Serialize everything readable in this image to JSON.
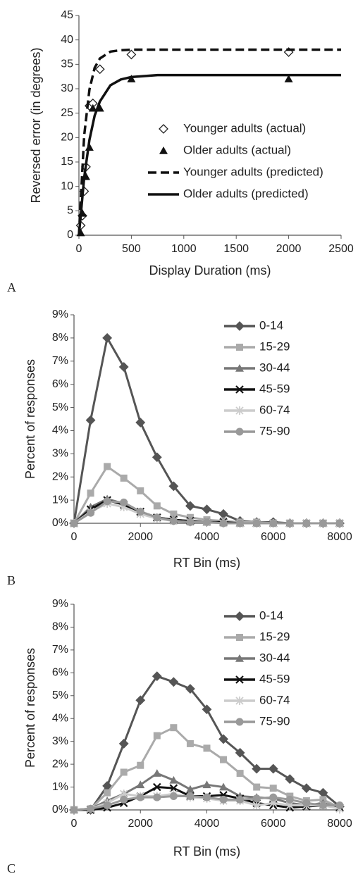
{
  "chart_data": [
    {
      "type": "scatter",
      "panel_label": "A",
      "x_label": "Display Duration (ms)",
      "y_label": "Reversed error (in degrees)",
      "xlim": [
        0,
        2500
      ],
      "xticks": [
        0,
        500,
        1000,
        1500,
        2000,
        2500
      ],
      "ylim": [
        0,
        45
      ],
      "yticks": [
        0,
        5,
        10,
        15,
        20,
        25,
        30,
        35,
        40,
        45
      ],
      "series": [
        {
          "name": "Younger adults (actual)",
          "color": "#222222",
          "marker": "diamond-open",
          "x": [
            17,
            33,
            50,
            67,
            100,
            133,
            200,
            500,
            2000
          ],
          "values": [
            2,
            4,
            9,
            14,
            26.5,
            27,
            34,
            37,
            37.5
          ]
        },
        {
          "name": "Older adults (actual)",
          "color": "#111111",
          "marker": "triangle",
          "x": [
            17,
            33,
            67,
            100,
            133,
            200,
            500,
            2000
          ],
          "values": [
            0.5,
            4.5,
            12,
            18,
            26,
            26,
            32,
            32
          ]
        },
        {
          "name": "Younger adults (predicted)",
          "color": "#111111",
          "line": "dashed",
          "x": [
            0,
            50,
            100,
            150,
            200,
            300,
            400,
            500,
            1000,
            2500
          ],
          "values": [
            0,
            20.4,
            29.8,
            34.3,
            36.2,
            37.6,
            37.9,
            38,
            38,
            38
          ]
        },
        {
          "name": "Older adults (predicted)",
          "color": "#111111",
          "line": "solid",
          "x": [
            0,
            50,
            100,
            150,
            200,
            300,
            400,
            500,
            750,
            1000,
            2500
          ],
          "values": [
            0,
            11.8,
            19.5,
            24.5,
            27.4,
            30.7,
            31.9,
            32.4,
            32.8,
            32.8,
            32.8
          ]
        }
      ]
    },
    {
      "type": "line",
      "panel_label": "B",
      "x_label": "RT Bin (ms)",
      "y_label": "Percent of responses",
      "x": [
        0,
        500,
        1000,
        1500,
        2000,
        2500,
        3000,
        3500,
        4000,
        4500,
        5000,
        5500,
        6000,
        6500,
        7000,
        7500,
        8000
      ],
      "xlim": [
        0,
        8000
      ],
      "xticks": [
        0,
        2000,
        4000,
        6000,
        8000
      ],
      "ylim": [
        0,
        9
      ],
      "yticks": [
        {
          "value": 0,
          "label": "0%"
        },
        {
          "value": 1,
          "label": "1%"
        },
        {
          "value": 2,
          "label": "2%"
        },
        {
          "value": 3,
          "label": "3%"
        },
        {
          "value": 4,
          "label": "4%"
        },
        {
          "value": 5,
          "label": "5%"
        },
        {
          "value": 6,
          "label": "6%"
        },
        {
          "value": 7,
          "label": "7%"
        },
        {
          "value": 8,
          "label": "8%"
        },
        {
          "value": 9,
          "label": "9%"
        }
      ],
      "series": [
        {
          "name": "0-14",
          "color": "#555555",
          "marker": "diamond",
          "line": "solid",
          "values": [
            0,
            4.45,
            8.0,
            6.75,
            4.35,
            2.85,
            1.6,
            0.75,
            0.6,
            0.4,
            0.1,
            0.05,
            0.05,
            0,
            0,
            0,
            0
          ]
        },
        {
          "name": "15-29",
          "color": "#aaaaaa",
          "marker": "square",
          "line": "solid",
          "values": [
            0,
            1.3,
            2.45,
            1.95,
            1.4,
            0.75,
            0.4,
            0.25,
            0.15,
            0.1,
            0.05,
            0.05,
            0,
            0,
            0,
            0,
            0
          ]
        },
        {
          "name": "30-44",
          "color": "#777777",
          "marker": "triangle",
          "line": "solid",
          "values": [
            0,
            0.7,
            1.05,
            0.85,
            0.5,
            0.25,
            0.15,
            0.1,
            0.05,
            0.05,
            0,
            0,
            0,
            0,
            0,
            0,
            0
          ]
        },
        {
          "name": "45-59",
          "color": "#111111",
          "marker": "x",
          "line": "solid",
          "values": [
            0,
            0.6,
            1.0,
            0.8,
            0.5,
            0.25,
            0.15,
            0.1,
            0.05,
            0.05,
            0,
            0,
            0,
            0,
            0,
            0,
            0
          ]
        },
        {
          "name": "60-74",
          "color": "#cccccc",
          "marker": "star",
          "line": "solid",
          "values": [
            0,
            0.5,
            0.85,
            0.7,
            0.4,
            0.2,
            0.1,
            0.05,
            0.05,
            0,
            0,
            0,
            0,
            0,
            0,
            0,
            0
          ]
        },
        {
          "name": "75-90",
          "color": "#999999",
          "marker": "circle",
          "line": "solid",
          "values": [
            0,
            0.45,
            0.95,
            0.9,
            0.5,
            0.25,
            0.1,
            0.05,
            0.05,
            0,
            0,
            0,
            0,
            0,
            0,
            0,
            0
          ]
        }
      ]
    },
    {
      "type": "line",
      "panel_label": "C",
      "x_label": "RT Bin (ms)",
      "y_label": "Percent of responses",
      "x": [
        0,
        500,
        1000,
        1500,
        2000,
        2500,
        3000,
        3500,
        4000,
        4500,
        5000,
        5500,
        6000,
        6500,
        7000,
        7500,
        8000
      ],
      "xlim": [
        0,
        8000
      ],
      "xticks": [
        0,
        2000,
        4000,
        6000,
        8000
      ],
      "ylim": [
        0,
        9
      ],
      "yticks": [
        {
          "value": 0,
          "label": "0%"
        },
        {
          "value": 1,
          "label": "1%"
        },
        {
          "value": 2,
          "label": "2%"
        },
        {
          "value": 3,
          "label": "3%"
        },
        {
          "value": 4,
          "label": "4%"
        },
        {
          "value": 5,
          "label": "5%"
        },
        {
          "value": 6,
          "label": "6%"
        },
        {
          "value": 7,
          "label": "7%"
        },
        {
          "value": 8,
          "label": "8%"
        },
        {
          "value": 9,
          "label": "9%"
        }
      ],
      "series": [
        {
          "name": "0-14",
          "color": "#555555",
          "marker": "diamond",
          "line": "solid",
          "values": [
            0,
            0,
            1.05,
            2.9,
            4.8,
            5.85,
            5.6,
            5.3,
            4.4,
            3.1,
            2.5,
            1.8,
            1.8,
            1.35,
            0.95,
            0.75,
            0.15
          ]
        },
        {
          "name": "15-29",
          "color": "#aaaaaa",
          "marker": "square",
          "line": "solid",
          "values": [
            0,
            0.05,
            0.75,
            1.65,
            1.95,
            3.25,
            3.6,
            2.9,
            2.7,
            2.2,
            1.6,
            1.0,
            0.95,
            0.6,
            0.4,
            0.45,
            0.1
          ]
        },
        {
          "name": "30-44",
          "color": "#777777",
          "marker": "triangle",
          "line": "solid",
          "values": [
            0,
            0.05,
            0.4,
            0.7,
            1.1,
            1.6,
            1.3,
            0.9,
            1.1,
            1.0,
            0.6,
            0.55,
            0.5,
            0.3,
            0.2,
            0.3,
            0.1
          ]
        },
        {
          "name": "45-59",
          "color": "#111111",
          "marker": "x",
          "line": "solid",
          "values": [
            0,
            0,
            0.1,
            0.3,
            0.6,
            1.0,
            0.95,
            0.6,
            0.6,
            0.65,
            0.5,
            0.3,
            0.2,
            0.1,
            0.15,
            0.2,
            0.1
          ]
        },
        {
          "name": "60-74",
          "color": "#cccccc",
          "marker": "star",
          "line": "solid",
          "values": [
            0,
            0.05,
            0.3,
            0.7,
            0.6,
            0.6,
            0.7,
            0.55,
            0.5,
            0.4,
            0.4,
            0.2,
            0.3,
            0.2,
            0.2,
            0.2,
            0.05
          ]
        },
        {
          "name": "75-90",
          "color": "#999999",
          "marker": "circle",
          "line": "solid",
          "values": [
            0,
            0.05,
            0.2,
            0.45,
            0.55,
            0.55,
            0.6,
            0.6,
            0.55,
            0.45,
            0.45,
            0.5,
            0.55,
            0.45,
            0.3,
            0.2,
            0.2
          ]
        }
      ]
    }
  ]
}
